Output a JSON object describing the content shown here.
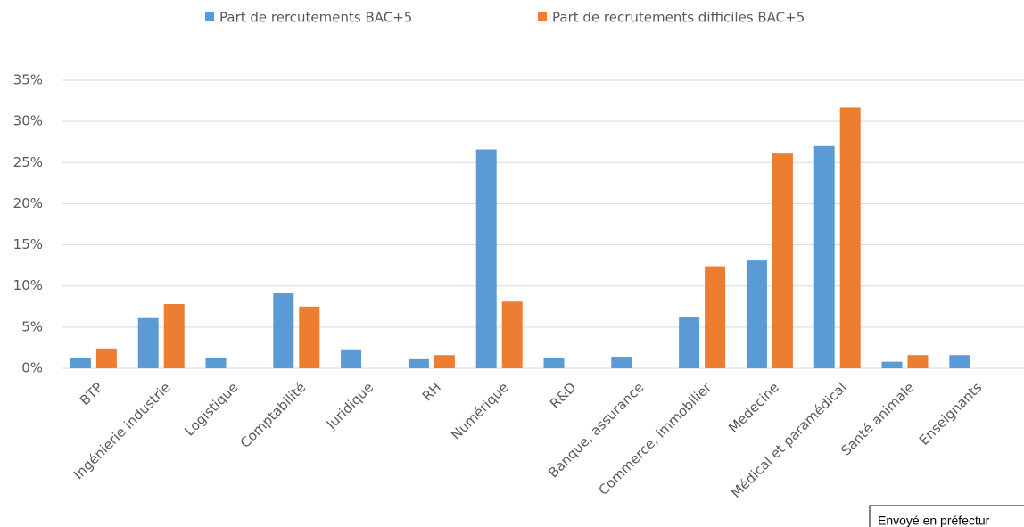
{
  "chart_data": {
    "type": "bar",
    "categories": [
      "BTP",
      "Ingénierie industrie",
      "Logistique",
      "Comptabilité",
      "Juridique",
      "RH",
      "Numérique",
      "R&D",
      "Banque, assurance",
      "Commerce, immobilier",
      "Médecine",
      "Médical et paramédical",
      "Santé animale",
      "Enseignants"
    ],
    "series": [
      {
        "name": "Part de rercutements BAC+5",
        "color": "#5b9bd5",
        "values": [
          1.3,
          6.1,
          1.3,
          9.1,
          2.3,
          1.1,
          26.6,
          1.3,
          1.4,
          6.2,
          13.1,
          27.0,
          0.8,
          1.6
        ]
      },
      {
        "name": "Part de recrutements difficiles BAC+5",
        "color": "#ed7d31",
        "values": [
          2.4,
          7.8,
          null,
          7.5,
          null,
          1.6,
          8.1,
          null,
          null,
          12.4,
          26.1,
          31.7,
          1.6,
          null
        ]
      }
    ],
    "ylim": [
      0,
      35
    ],
    "yticks": [
      {
        "value": 0,
        "label": "0%"
      },
      {
        "value": 5,
        "label": "5%"
      },
      {
        "value": 10,
        "label": "10%"
      },
      {
        "value": 15,
        "label": "15%"
      },
      {
        "value": 20,
        "label": "20%"
      },
      {
        "value": 25,
        "label": "25%"
      },
      {
        "value": 30,
        "label": "30%"
      },
      {
        "value": 35,
        "label": "35%"
      }
    ],
    "grid": true,
    "legend": "top",
    "annotation": "Envoyé en préfectur"
  }
}
